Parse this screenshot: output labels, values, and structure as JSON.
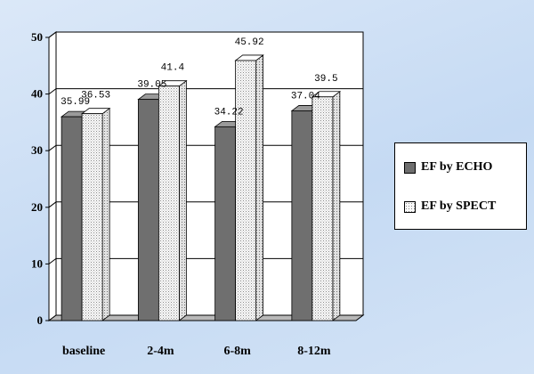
{
  "chart_data": {
    "type": "bar",
    "categories": [
      "baseline",
      "2-4m",
      "6-8m",
      "8-12m"
    ],
    "series": [
      {
        "name": "EF by ECHO",
        "values": [
          35.99,
          39.05,
          34.22,
          37.04
        ],
        "labels": [
          "35.99",
          "39.05",
          "34.22",
          "37.04"
        ],
        "color": "#707070"
      },
      {
        "name": "EF by SPECT",
        "values": [
          36.53,
          41.4,
          45.92,
          39.5
        ],
        "labels": [
          "36.53",
          "41.4",
          "45.92",
          "39.5"
        ],
        "color": "#f4f4f4"
      }
    ],
    "yticks": [
      "0",
      "10",
      "20",
      "30",
      "40",
      "50"
    ],
    "ylim": [
      0,
      50
    ],
    "title": "",
    "xlabel": "",
    "ylabel": "",
    "legend_position": "right",
    "grid": true,
    "style": "3d-bar"
  }
}
